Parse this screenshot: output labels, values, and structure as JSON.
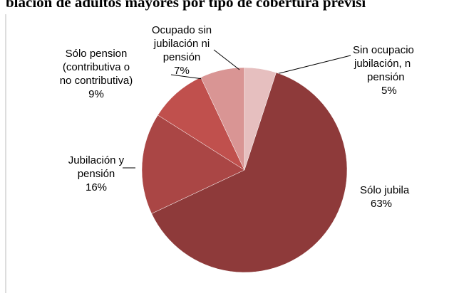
{
  "chart_data": {
    "type": "pie",
    "title": "blación de adultos mayores por tipo de cobertura previsi",
    "categories": [
      "Sin ocupacio\njubilación, n\npensión",
      "Sólo jubila",
      "Jubilación y\npensión",
      "Sólo pension\n(contributiva o\nno contributiva)",
      "Ocupado sin\njubilación ni\npensión"
    ],
    "values": [
      5,
      63,
      16,
      9,
      7
    ],
    "value_labels": [
      "5%",
      "63%",
      "16%",
      "9%",
      "7%"
    ],
    "colors": [
      "#e6bfbf",
      "#8e3a3a",
      "#aa4645",
      "#c0504d",
      "#d99594"
    ]
  }
}
